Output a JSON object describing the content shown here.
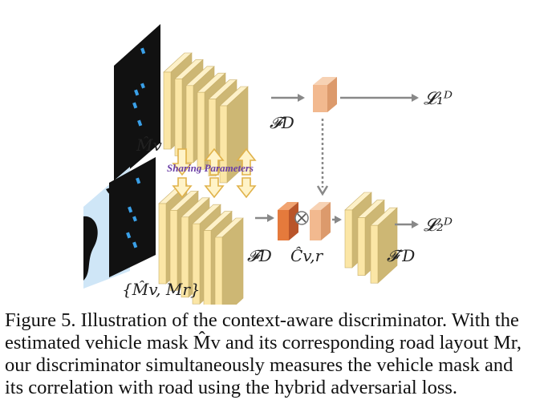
{
  "diagram": {
    "labels": {
      "mask_vehicle": "M̂v",
      "feature_top": "𝓕D",
      "loss1": "𝓛₁ᴰ",
      "sharing": "Sharing Parameters",
      "feature_bottom": "𝓕D",
      "correlation": "Ĉv,r",
      "feature_prime": "𝓕′D",
      "loss2": "𝓛₂ᴰ",
      "mask_pair": "{M̂v, Mr}"
    },
    "colors": {
      "feature_cube": "#fbe6a6",
      "feature_edge": "#c9b06a",
      "small_cube": "#f2b98f",
      "corr_cube": "#e57a3c",
      "arrow": "#888888",
      "sharing_text": "#6b3fa6",
      "mask_bg": "#111111",
      "mask_blob": "#3aa0e8",
      "road": "#cfe6f7"
    }
  },
  "caption": {
    "lines": [
      "Figure 5. Illustration of the context-aware discriminator. With the",
      "estimated vehicle mask M̂v and its corresponding road layout Mr,",
      "our discriminator simultaneously measures the vehicle mask and",
      "its correlation with road using the hybrid adversarial loss."
    ]
  }
}
